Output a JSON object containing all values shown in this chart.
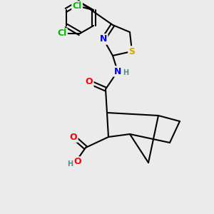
{
  "bg_color": "#ebebeb",
  "bond_color": "#000000",
  "bond_lw": 1.5,
  "atom_colors": {
    "O": "#ff0000",
    "N": "#0000ff",
    "S": "#ccaa00",
    "Cl": "#00bb00",
    "H": "#5a8a8a",
    "C": "#000000"
  },
  "font_size_atom": 9,
  "font_size_small": 8
}
